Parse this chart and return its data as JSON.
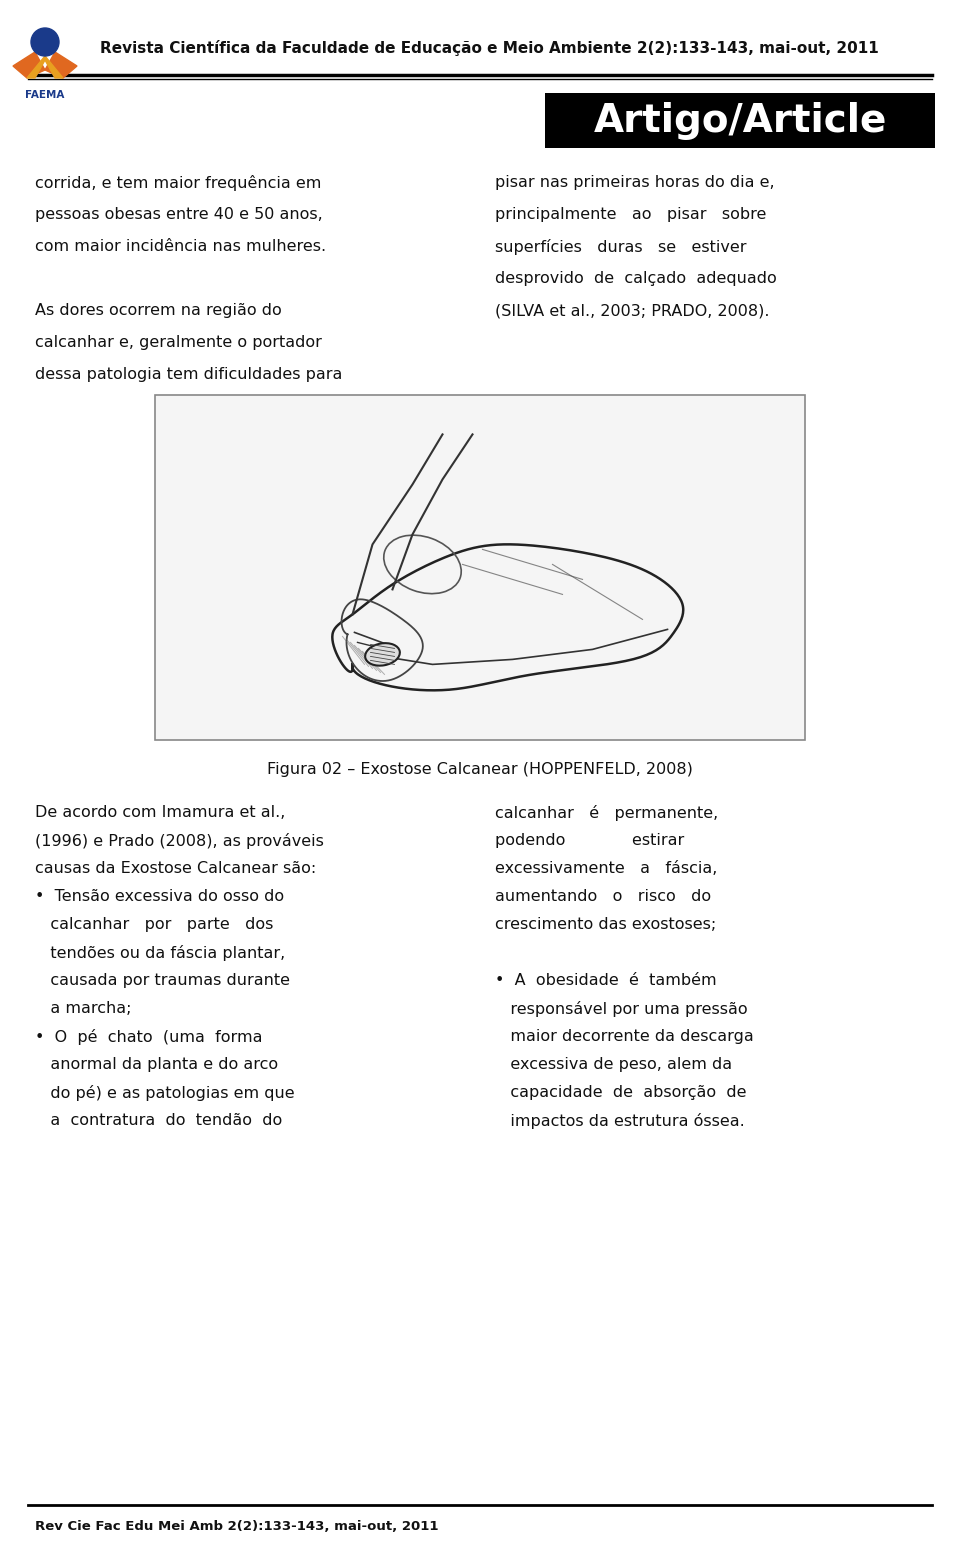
{
  "page_bg": "#ffffff",
  "header_line_color": "#000000",
  "footer_line_color": "#000000",
  "header_journal": "Revista Científica da Faculdade de Educação e Meio Ambiente 2(2):133-143, mai-out, 2011",
  "footer_journal": "Rev Cie Fac Edu Mei Amb 2(2):133-143, mai-out, 2011",
  "artigo_bg": "#000000",
  "artigo_text": "Artigo/Article",
  "artigo_text_color": "#ffffff",
  "col1_lines": [
    "corrida, e tem maior frequência em",
    "pessoas obesas entre 40 e 50 anos,",
    "com maior incidência nas mulheres.",
    "",
    "As dores ocorrem na região do",
    "calcanhar e, geralmente o portador",
    "dessa patologia tem dificuldades para"
  ],
  "col2_lines": [
    "pisar nas primeiras horas do dia e,",
    "principalmente   ao   pisar   sobre",
    "superfícies   duras   se   estiver",
    "desprovido  de  calçado  adequado",
    "(SILVA et al., 2003; PRADO, 2008)."
  ],
  "figura_caption": "Figura 02 – Exostose Calcanear (HOPPENFELD, 2008)",
  "section2_col1_lines": [
    "De acordo com Imamura et al.,",
    "(1996) e Prado (2008), as prováveis",
    "causas da Exostose Calcanear são:",
    "•  Tensão excessiva do osso do",
    "   calcanhar   por   parte   dos",
    "   tendões ou da fáscia plantar,",
    "   causada por traumas durante",
    "   a marcha;",
    "•  O  pé  chato  (uma  forma",
    "   anormal da planta e do arco",
    "   do pé) e as patologias em que",
    "   a  contratura  do  tendão  do"
  ],
  "section2_col2_lines": [
    "calcanhar   é   permanente,",
    "podendo             estirar",
    "excessivamente   a   fáscia,",
    "aumentando   o   risco   do",
    "crescimento das exostoses;",
    "",
    "•  A  obesidade  é  também",
    "   responsável por uma pressão",
    "   maior decorrente da descarga",
    "   excessiva de peso, alem da",
    "   capacidade  de  absorção  de",
    "   impactos da estrutura óssea."
  ],
  "font_size_body": 11.5,
  "font_size_header": 11,
  "font_size_footer": 9.5,
  "font_size_artigo": 28,
  "font_size_caption": 11.5,
  "logo_color_blue": "#1a3a8a",
  "logo_color_orange": "#e06820",
  "logo_color_yellow": "#e8a020"
}
